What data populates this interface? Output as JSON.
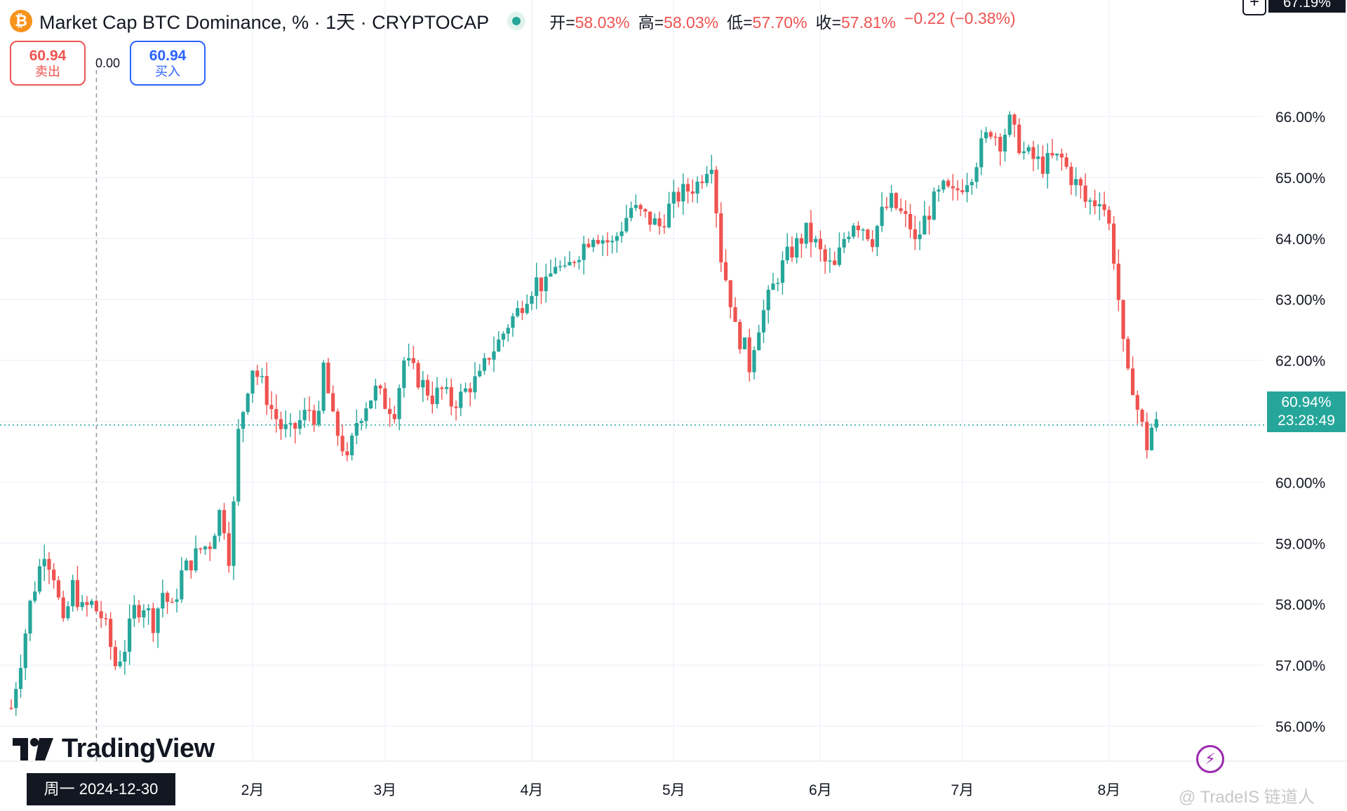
{
  "header": {
    "coin_symbol": "₿",
    "title": "Market Cap BTC Dominance, % · 1天 · CRYPTOCAP",
    "ohlc": {
      "open_label": "开=",
      "open": "58.03%",
      "high_label": "高=",
      "high": "58.03%",
      "low_label": "低=",
      "low": "57.70%",
      "close_label": "收=",
      "close": "57.81%",
      "change": "−0.22 (−0.38%)"
    }
  },
  "trade": {
    "sell_price": "60.94",
    "sell_label": "卖出",
    "spread": "0.00",
    "buy_price": "60.94",
    "buy_label": "买入"
  },
  "price_axis": {
    "top_cut_label": "67.19%",
    "current_price": "60.94%",
    "countdown": "23:28:49"
  },
  "time_axis": {
    "crosshair_date": "周一  2024-12-30"
  },
  "branding": {
    "logo_text": "TradingView"
  },
  "watermark": "@ TradeIS 链道人",
  "colors": {
    "up": "#26a69a",
    "down": "#ef5350",
    "grid": "#f0f3fa",
    "text": "#131722"
  },
  "chart_data": {
    "type": "candlestick",
    "title": "Market Cap BTC Dominance, %",
    "ylim": [
      55.6,
      67.2
    ],
    "y_ticks": [
      56,
      57,
      58,
      59,
      60,
      61,
      62,
      63,
      64,
      65,
      66
    ],
    "y_tick_labels": [
      "56.00%",
      "57.00%",
      "58.00%",
      "59.00%",
      "60.00%",
      "61.00%",
      "62.00%",
      "63.00%",
      "64.00%",
      "65.00%",
      "66.00%"
    ],
    "x_ticks": [
      {
        "label": "2月",
        "day": 32
      },
      {
        "label": "3月",
        "day": 60
      },
      {
        "label": "4月",
        "day": 91
      },
      {
        "label": "5月",
        "day": 121
      },
      {
        "label": "6月",
        "day": 152
      },
      {
        "label": "7月",
        "day": 182
      },
      {
        "label": "8月",
        "day": 213
      }
    ],
    "crosshair_day": -1,
    "current_price": 60.94,
    "last_day": 223,
    "start_day": -19,
    "anchors": [
      [
        -19,
        56.3
      ],
      [
        -17,
        57.1
      ],
      [
        -15,
        58.0
      ],
      [
        -12,
        58.9
      ],
      [
        -10,
        58.5
      ],
      [
        -8,
        57.6
      ],
      [
        -6,
        58.3
      ],
      [
        -4,
        57.9
      ],
      [
        -2,
        58.0
      ],
      [
        0,
        57.8
      ],
      [
        1,
        57.6
      ],
      [
        3,
        57.0
      ],
      [
        5,
        57.3
      ],
      [
        7,
        57.9
      ],
      [
        9,
        58.0
      ],
      [
        11,
        57.7
      ],
      [
        13,
        58.2
      ],
      [
        15,
        57.9
      ],
      [
        17,
        58.5
      ],
      [
        19,
        58.7
      ],
      [
        21,
        58.9
      ],
      [
        23,
        59.0
      ],
      [
        25,
        59.5
      ],
      [
        26,
        59.3
      ],
      [
        27,
        58.8
      ],
      [
        28,
        59.6
      ],
      [
        29,
        60.8
      ],
      [
        30,
        61.2
      ],
      [
        31,
        61.6
      ],
      [
        32,
        61.9
      ],
      [
        34,
        61.6
      ],
      [
        36,
        61.2
      ],
      [
        38,
        60.9
      ],
      [
        40,
        60.8
      ],
      [
        42,
        61.0
      ],
      [
        44,
        61.2
      ],
      [
        46,
        61.0
      ],
      [
        47,
        61.9
      ],
      [
        49,
        61.0
      ],
      [
        51,
        60.6
      ],
      [
        52,
        60.3
      ],
      [
        54,
        61.0
      ],
      [
        56,
        61.3
      ],
      [
        58,
        61.5
      ],
      [
        60,
        61.3
      ],
      [
        62,
        61.2
      ],
      [
        64,
        62.0
      ],
      [
        66,
        61.8
      ],
      [
        68,
        61.6
      ],
      [
        70,
        61.4
      ],
      [
        72,
        61.5
      ],
      [
        74,
        61.3
      ],
      [
        76,
        61.4
      ],
      [
        78,
        61.6
      ],
      [
        80,
        61.7
      ],
      [
        82,
        62.1
      ],
      [
        84,
        62.3
      ],
      [
        86,
        62.6
      ],
      [
        88,
        62.8
      ],
      [
        90,
        63.1
      ],
      [
        92,
        63.3
      ],
      [
        94,
        63.2
      ],
      [
        96,
        63.6
      ],
      [
        98,
        63.4
      ],
      [
        100,
        63.7
      ],
      [
        102,
        63.9
      ],
      [
        104,
        64.1
      ],
      [
        106,
        64.0
      ],
      [
        108,
        63.9
      ],
      [
        110,
        64.2
      ],
      [
        112,
        64.5
      ],
      [
        114,
        64.4
      ],
      [
        116,
        64.3
      ],
      [
        118,
        64.2
      ],
      [
        120,
        64.5
      ],
      [
        122,
        64.7
      ],
      [
        124,
        64.8
      ],
      [
        126,
        64.9
      ],
      [
        128,
        65.2
      ],
      [
        129,
        65.3
      ],
      [
        130,
        64.5
      ],
      [
        131,
        63.7
      ],
      [
        133,
        63.0
      ],
      [
        134,
        62.5
      ],
      [
        136,
        62.2
      ],
      [
        137,
        61.9
      ],
      [
        138,
        62.3
      ],
      [
        139,
        62.6
      ],
      [
        141,
        63.0
      ],
      [
        143,
        63.4
      ],
      [
        145,
        63.7
      ],
      [
        147,
        63.9
      ],
      [
        149,
        64.1
      ],
      [
        151,
        63.9
      ],
      [
        153,
        63.6
      ],
      [
        155,
        63.5
      ],
      [
        157,
        64.0
      ],
      [
        159,
        64.3
      ],
      [
        161,
        64.2
      ],
      [
        163,
        64.0
      ],
      [
        165,
        64.4
      ],
      [
        167,
        64.6
      ],
      [
        169,
        64.4
      ],
      [
        171,
        64.2
      ],
      [
        172,
        63.9
      ],
      [
        174,
        64.3
      ],
      [
        176,
        64.6
      ],
      [
        178,
        64.8
      ],
      [
        180,
        64.7
      ],
      [
        182,
        64.9
      ],
      [
        184,
        65.1
      ],
      [
        186,
        65.5
      ],
      [
        188,
        65.8
      ],
      [
        190,
        65.6
      ],
      [
        192,
        65.9
      ],
      [
        193,
        65.7
      ],
      [
        195,
        65.4
      ],
      [
        197,
        65.3
      ],
      [
        199,
        65.2
      ],
      [
        201,
        65.3
      ],
      [
        203,
        65.3
      ],
      [
        205,
        65.0
      ],
      [
        207,
        64.8
      ],
      [
        208,
        64.6
      ],
      [
        210,
        64.6
      ],
      [
        211,
        64.7
      ],
      [
        212,
        64.5
      ],
      [
        213,
        64.2
      ],
      [
        214,
        63.7
      ],
      [
        215,
        63.0
      ],
      [
        216,
        62.2
      ],
      [
        217,
        61.7
      ],
      [
        218,
        61.6
      ],
      [
        219,
        61.2
      ],
      [
        220,
        60.9
      ],
      [
        221,
        60.6
      ],
      [
        222,
        60.9
      ],
      [
        223,
        60.94
      ]
    ]
  }
}
